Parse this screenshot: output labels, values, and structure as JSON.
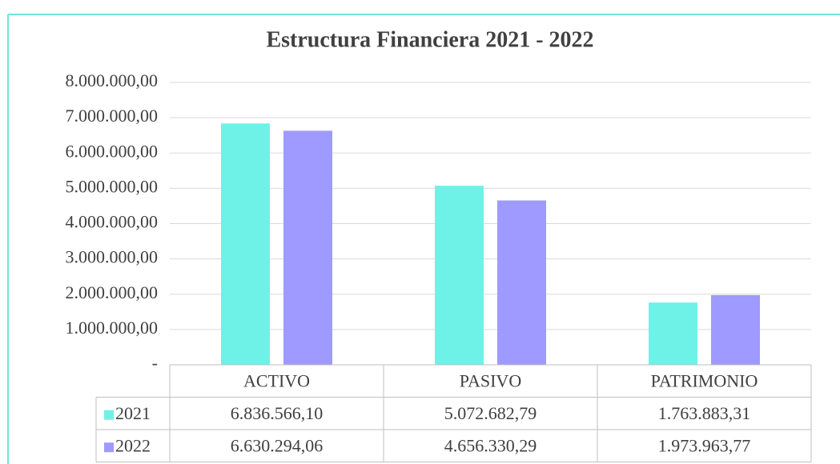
{
  "chart_data": {
    "type": "bar",
    "title": "Estructura Financiera 2021 - 2022",
    "categories": [
      "ACTIVO",
      "PASIVO",
      "PATRIMONIO"
    ],
    "series": [
      {
        "name": "2021",
        "color": "#6ef2e8",
        "values": [
          6836566.1,
          5072682.79,
          1763883.31
        ],
        "value_labels": [
          "6.836.566,10",
          "5.072.682,79",
          "1.763.883,31"
        ]
      },
      {
        "name": "2022",
        "color": "#9e9aff",
        "values": [
          6630294.06,
          4656330.29,
          1973963.77
        ],
        "value_labels": [
          "6.630.294,06",
          "4.656.330,29",
          "1.973.963,77"
        ]
      }
    ],
    "ylim": [
      0,
      8000000
    ],
    "yticks": [
      {
        "value": 0,
        "label": "-"
      },
      {
        "value": 1000000,
        "label": "1.000.000,00"
      },
      {
        "value": 2000000,
        "label": "2.000.000,00"
      },
      {
        "value": 3000000,
        "label": "3.000.000,00"
      },
      {
        "value": 4000000,
        "label": "4.000.000,00"
      },
      {
        "value": 5000000,
        "label": "5.000.000,00"
      },
      {
        "value": 6000000,
        "label": "6.000.000,00"
      },
      {
        "value": 7000000,
        "label": "7.000.000,00"
      },
      {
        "value": 8000000,
        "label": "8.000.000,00"
      }
    ],
    "grid": true
  }
}
